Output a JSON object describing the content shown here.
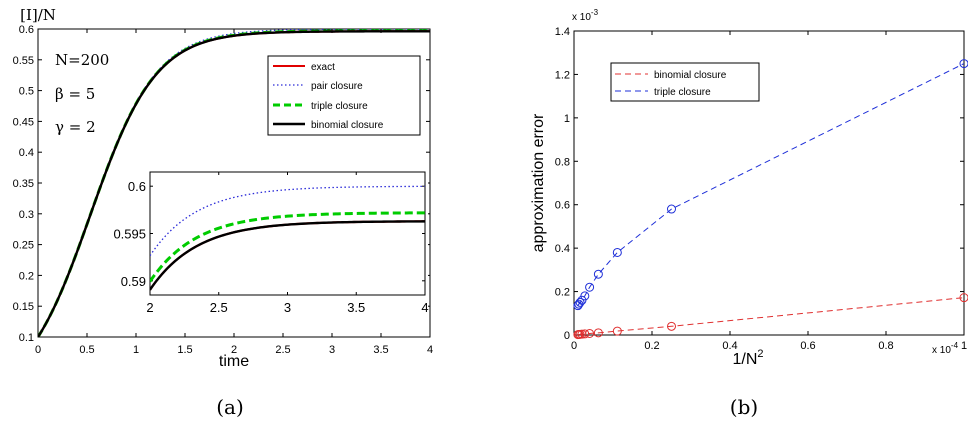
{
  "panel_a": {
    "ylabel_top": "[I]/N",
    "xlabel": "time",
    "caption": "(a)",
    "params": [
      "N=200",
      "β = 5",
      "γ = 2"
    ]
  },
  "panel_b": {
    "caption": "(b)",
    "ylabel": "approximation error",
    "xlabel_base": "1/N",
    "xlabel_sup": "2",
    "y_exp": "x 10",
    "y_exp_pow": "-3",
    "x_exp": "x 10",
    "x_exp_pow": "-4"
  },
  "colors": {
    "exact": "#e00000",
    "pair": "#2a2ad8",
    "triple": "#00cc00",
    "binomial": "#000000",
    "binomial_b": "#e03030",
    "triple_b": "#1e2fd8"
  },
  "chart_data": [
    {
      "type": "line",
      "xlim": [
        0,
        4
      ],
      "ylim": [
        0.1,
        0.6
      ],
      "x_ticks": [
        "0",
        "0.5",
        "1",
        "1.5",
        "2",
        "2.5",
        "3",
        "3.5",
        "4"
      ],
      "y_ticks": [
        "0.1",
        "0.15",
        "0.2",
        "0.25",
        "0.3",
        "0.35",
        "0.4",
        "0.45",
        "0.5",
        "0.55",
        "0.6"
      ],
      "legend_position": "upper-right",
      "series": [
        {
          "name": "exact",
          "style": "solid",
          "x0": 0.1,
          "plateau": 0.5963,
          "rate": 3.0
        },
        {
          "name": "pair closure",
          "style": "dotted",
          "x0": 0.1,
          "plateau": 0.6,
          "rate": 3.0
        },
        {
          "name": "triple closure",
          "style": "dashed",
          "x0": 0.1,
          "plateau": 0.5972,
          "rate": 3.0
        },
        {
          "name": "binomial closure",
          "style": "solid",
          "x0": 0.1,
          "plateau": 0.5963,
          "rate": 3.0
        }
      ],
      "inset": {
        "xlim": [
          2,
          4
        ],
        "ylim": [
          0.5885,
          0.6015
        ],
        "x_ticks": [
          "2",
          "2.5",
          "3",
          "3.5",
          "4"
        ],
        "y_ticks": [
          "0.59",
          "0.595",
          "0.6"
        ]
      }
    },
    {
      "type": "line",
      "xlim": [
        0,
        0.0001
      ],
      "ylim": [
        0,
        0.0014
      ],
      "x_ticks": [
        "0",
        "0.2",
        "0.4",
        "0.6",
        "0.8",
        "1"
      ],
      "y_ticks": [
        "0",
        "0.2",
        "0.4",
        "0.6",
        "0.8",
        "1",
        "1.2",
        "1.4"
      ],
      "legend_position": "upper-left",
      "series": [
        {
          "name": "binomial closure",
          "style": "dashed",
          "marker": "circle",
          "x": [
            0.0001,
            2.5e-05,
            1.111e-05,
            6.25e-06,
            4e-06,
            2.778e-06,
            2.041e-06,
            1.5625e-06,
            1.235e-06,
            1e-06
          ],
          "y": [
            0.000172,
            4e-05,
            1.8e-05,
            1e-05,
            7e-06,
            5e-06,
            4e-06,
            3e-06,
            2.5e-06,
            2e-06
          ]
        },
        {
          "name": "triple closure",
          "style": "dashed",
          "marker": "circle",
          "x": [
            0.0001,
            2.5e-05,
            1.111e-05,
            6.25e-06,
            4e-06,
            2.778e-06,
            2.041e-06,
            1.5625e-06,
            1.235e-06,
            1e-06
          ],
          "y": [
            0.00125,
            0.00058,
            0.00038,
            0.00028,
            0.00022,
            0.00018,
            0.00016,
            0.00015,
            0.000142,
            0.000135
          ]
        }
      ]
    }
  ]
}
